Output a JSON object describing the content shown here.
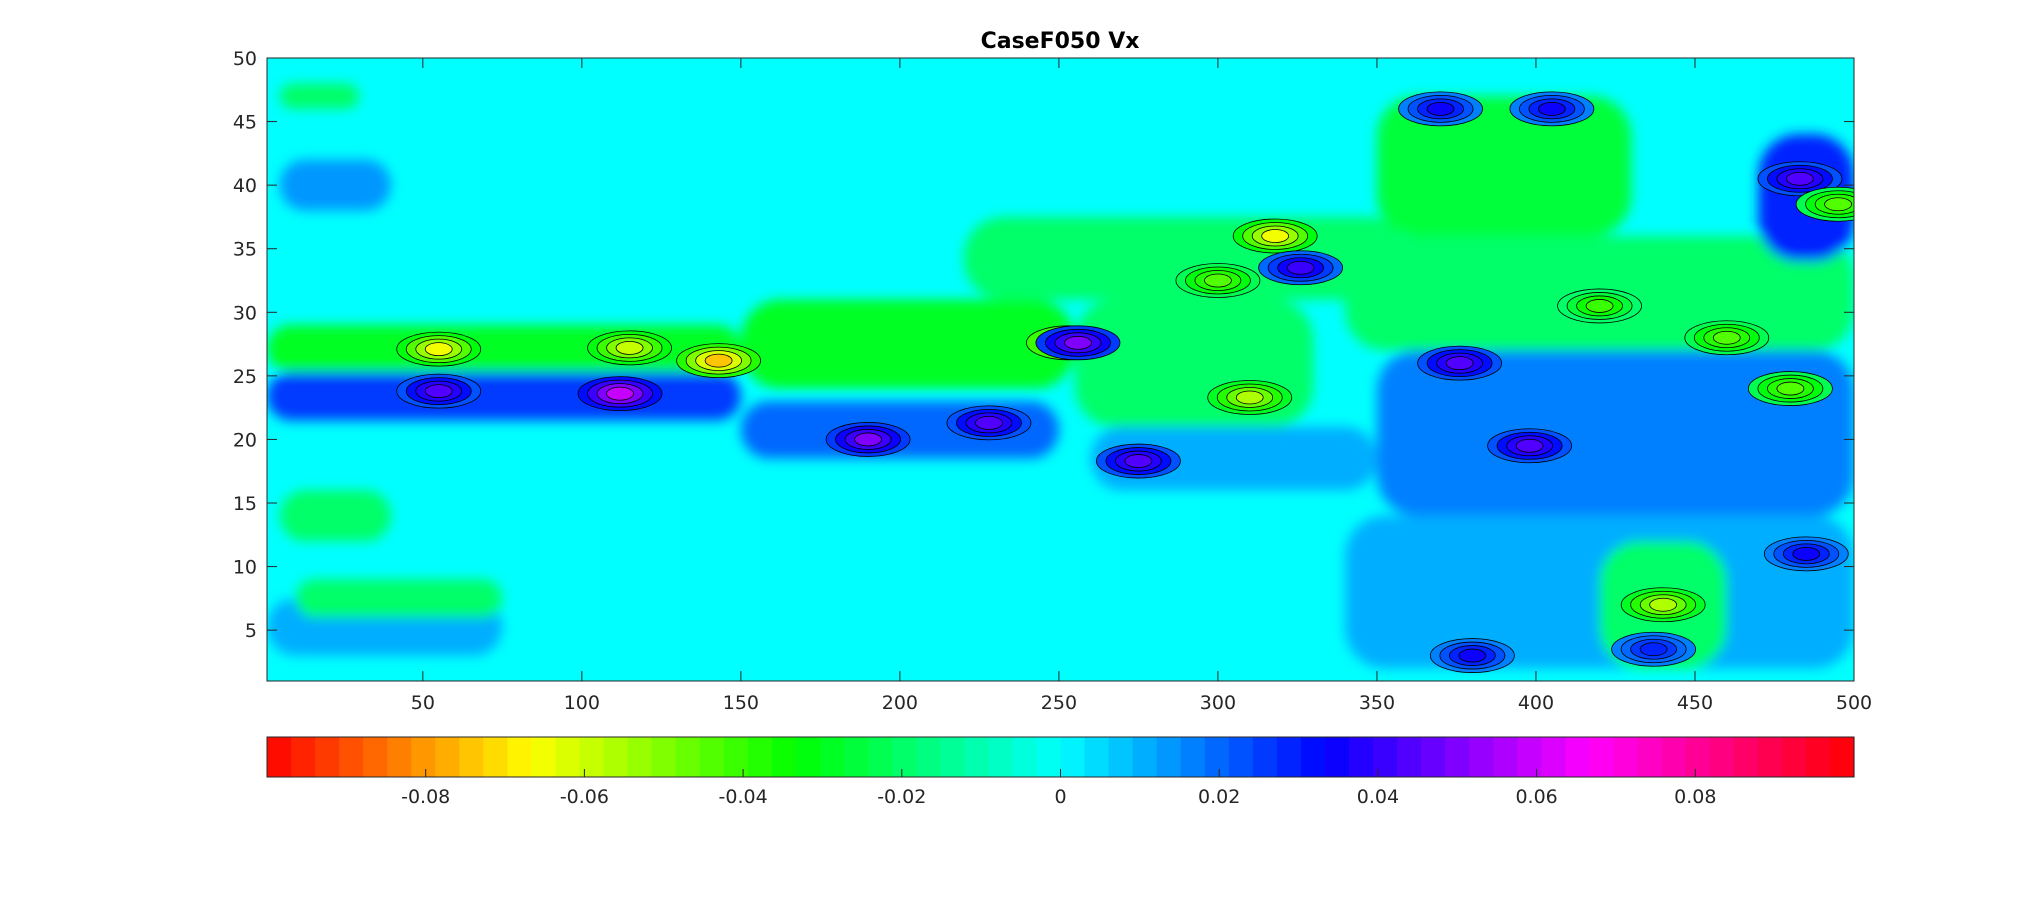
{
  "chart_data": {
    "type": "heatmap",
    "subtype": "filled-contour",
    "title": "CaseF050 Vx",
    "xlabel": "",
    "ylabel": "",
    "xlim": [
      1,
      500
    ],
    "ylim": [
      1,
      50
    ],
    "x_ticks": [
      50,
      100,
      150,
      200,
      250,
      300,
      350,
      400,
      450,
      500
    ],
    "y_ticks": [
      5,
      10,
      15,
      20,
      25,
      30,
      35,
      40,
      45,
      50
    ],
    "background_value": 0,
    "colorbar": {
      "orientation": "horizontal",
      "placement": "bottom",
      "colormap": "hsv",
      "clim": [
        -0.1,
        0.1
      ],
      "levels": 66,
      "ticks": [
        -0.08,
        -0.06,
        -0.04,
        -0.02,
        0,
        0.02,
        0.04,
        0.06,
        0.08
      ],
      "tick_labels": [
        "-0.08",
        "-0.06",
        "-0.04",
        "-0.02",
        "0",
        "0.02",
        "0.04",
        "0.06",
        "0.08"
      ]
    },
    "features": [
      {
        "x": 55,
        "y": 27.1,
        "value": -0.065
      },
      {
        "x": 115,
        "y": 27.2,
        "value": -0.06
      },
      {
        "x": 143,
        "y": 26.2,
        "value": -0.075
      },
      {
        "x": 55,
        "y": 23.8,
        "value": 0.045
      },
      {
        "x": 112,
        "y": 23.6,
        "value": 0.06
      },
      {
        "x": 190,
        "y": 20.0,
        "value": 0.05
      },
      {
        "x": 228,
        "y": 21.3,
        "value": 0.045
      },
      {
        "x": 253,
        "y": 27.6,
        "value": -0.08
      },
      {
        "x": 256,
        "y": 27.6,
        "value": 0.05
      },
      {
        "x": 300,
        "y": 32.5,
        "value": -0.045
      },
      {
        "x": 318,
        "y": 36.0,
        "value": -0.065
      },
      {
        "x": 326,
        "y": 33.5,
        "value": 0.04
      },
      {
        "x": 275,
        "y": 18.3,
        "value": 0.045
      },
      {
        "x": 310,
        "y": 23.3,
        "value": -0.055
      },
      {
        "x": 376,
        "y": 26.0,
        "value": 0.045
      },
      {
        "x": 405,
        "y": 46.0,
        "value": 0.035
      },
      {
        "x": 370,
        "y": 46.0,
        "value": 0.035
      },
      {
        "x": 483,
        "y": 40.5,
        "value": 0.045
      },
      {
        "x": 495,
        "y": 38.5,
        "value": -0.045
      },
      {
        "x": 480,
        "y": 24.0,
        "value": -0.045
      },
      {
        "x": 398,
        "y": 19.5,
        "value": 0.045
      },
      {
        "x": 440,
        "y": 7.0,
        "value": -0.055
      },
      {
        "x": 380,
        "y": 3.0,
        "value": 0.035
      },
      {
        "x": 437,
        "y": 3.5,
        "value": 0.03
      },
      {
        "x": 485,
        "y": 11.0,
        "value": 0.035
      },
      {
        "x": 420,
        "y": 30.5,
        "value": -0.04
      },
      {
        "x": 460,
        "y": 28.0,
        "value": -0.045
      }
    ]
  }
}
